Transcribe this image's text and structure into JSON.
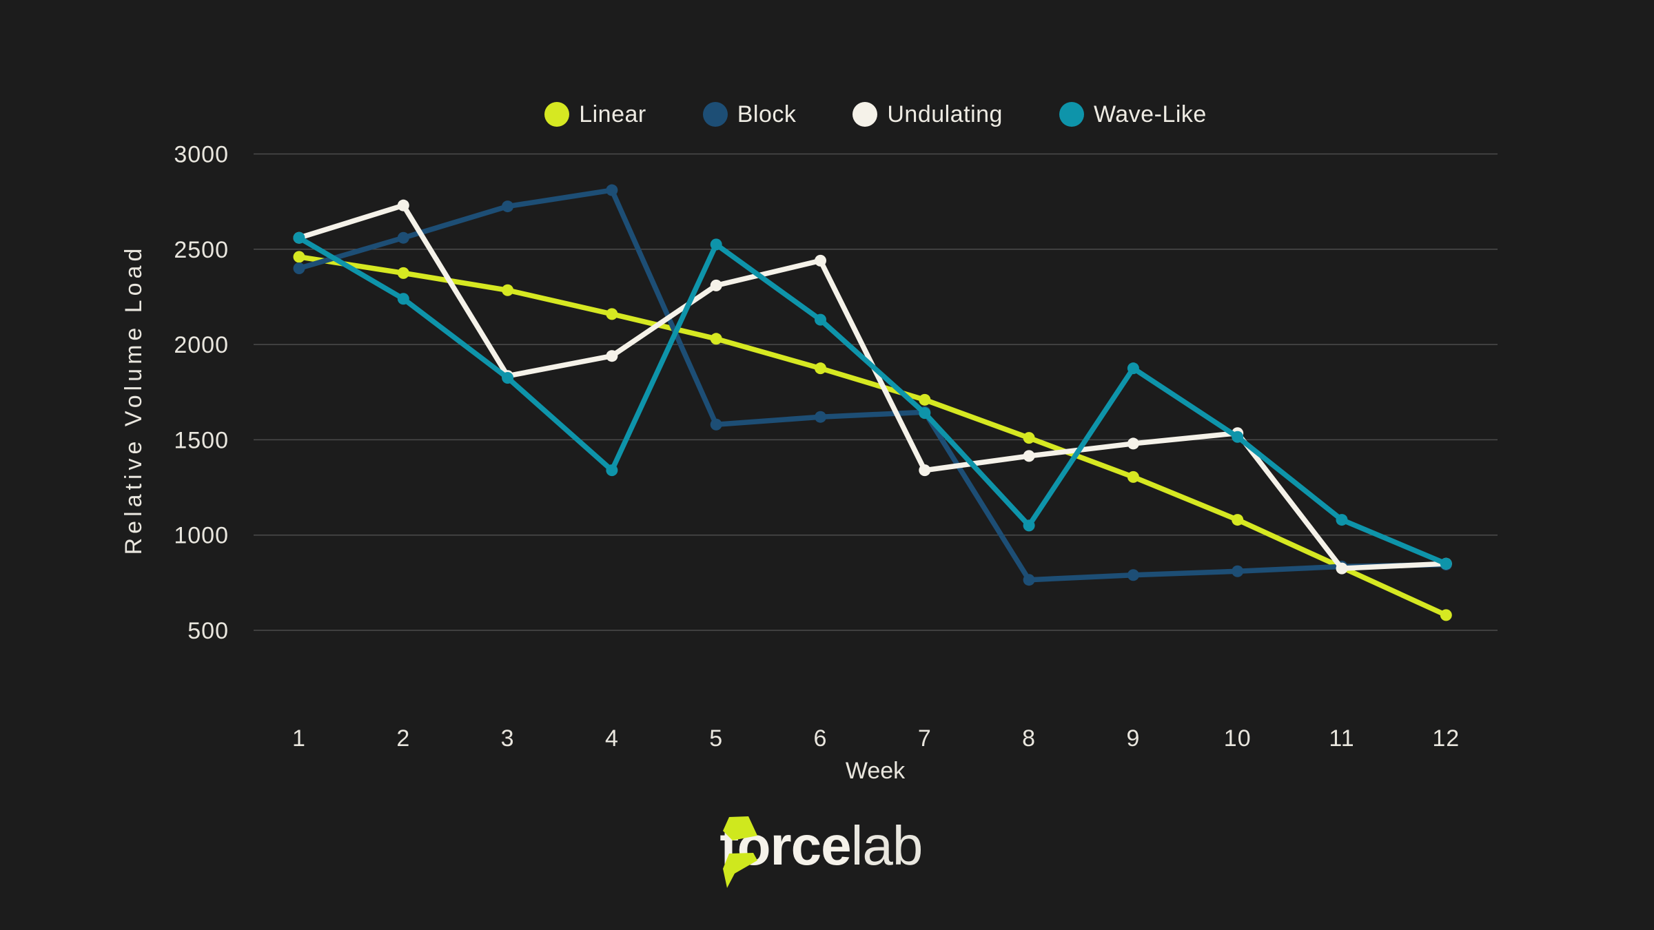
{
  "chart_data": {
    "type": "line",
    "title": "",
    "xlabel": "Week",
    "ylabel": "Relative Volume Load",
    "x": [
      1,
      2,
      3,
      4,
      5,
      6,
      7,
      8,
      9,
      10,
      11,
      12
    ],
    "yticks": [
      500,
      1000,
      1500,
      2000,
      2500,
      3000
    ],
    "ylim": [
      500,
      3000
    ],
    "grid": "horizontal",
    "legend_position": "top-center",
    "series": [
      {
        "name": "Linear",
        "color": "#d6e822",
        "values": [
          2460,
          2375,
          2285,
          2160,
          2030,
          1875,
          1710,
          1510,
          1305,
          1080,
          830,
          580
        ]
      },
      {
        "name": "Block",
        "color": "#1d4e75",
        "values": [
          2400,
          2560,
          2725,
          2810,
          1580,
          1620,
          1645,
          765,
          790,
          810,
          835,
          845
        ]
      },
      {
        "name": "Undulating",
        "color": "#f5f2e9",
        "values": [
          2560,
          2730,
          1835,
          1940,
          2310,
          2440,
          1340,
          1415,
          1480,
          1535,
          825,
          850
        ]
      },
      {
        "name": "Wave-Like",
        "color": "#0e94aa",
        "values": [
          2560,
          2240,
          1825,
          1340,
          2525,
          2130,
          1640,
          1050,
          1875,
          1515,
          1080,
          850
        ]
      }
    ]
  },
  "axes": {
    "x_label": "Week",
    "y_label": "Relative Volume Load"
  },
  "brand": {
    "name_bold": "force",
    "name_light": "lab",
    "logo_color": "#cfe81e"
  },
  "colors": {
    "background": "#1c1c1c",
    "gridline": "#4b4b4b",
    "tick_text": "#e9e6de"
  }
}
